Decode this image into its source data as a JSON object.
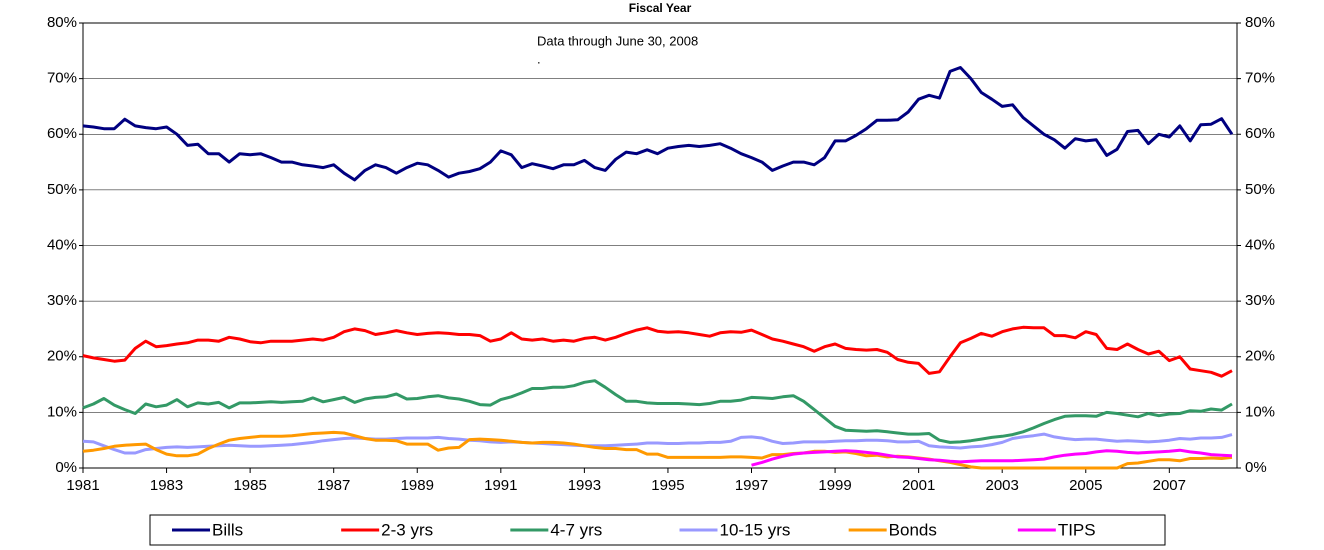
{
  "chart_data": {
    "type": "line",
    "title": "Fiscal Year",
    "annotations": [
      "Data through June 30, 2008",
      "."
    ],
    "categories": [
      "1981",
      null,
      null,
      null,
      null,
      null,
      null,
      null,
      "1983",
      null,
      null,
      null,
      null,
      null,
      null,
      null,
      "1985",
      null,
      null,
      null,
      null,
      null,
      null,
      null,
      "1987",
      null,
      null,
      null,
      null,
      null,
      null,
      null,
      "1989",
      null,
      null,
      null,
      null,
      null,
      null,
      null,
      "1991",
      null,
      null,
      null,
      null,
      null,
      null,
      null,
      "1993",
      null,
      null,
      null,
      null,
      null,
      null,
      null,
      "1995",
      null,
      null,
      null,
      null,
      null,
      null,
      null,
      "1997",
      null,
      null,
      null,
      null,
      null,
      null,
      null,
      "1999",
      null,
      null,
      null,
      null,
      null,
      null,
      null,
      "2001",
      null,
      null,
      null,
      null,
      null,
      null,
      null,
      "2003",
      null,
      null,
      null,
      null,
      null,
      null,
      null,
      "2005",
      null,
      null,
      null,
      null,
      null,
      null,
      null,
      "2007",
      null,
      null,
      null,
      null,
      null,
      null
    ],
    "series": [
      {
        "name": "Bills",
        "color": "#000080",
        "values": [
          61.5,
          61.3,
          61.0,
          61.0,
          62.7,
          61.5,
          61.2,
          61.0,
          61.3,
          60.0,
          58.0,
          58.2,
          56.5,
          56.5,
          55.0,
          56.5,
          56.3,
          56.5,
          55.8,
          55.0,
          55.0,
          54.5,
          54.3,
          54.0,
          54.5,
          53.0,
          51.8,
          53.5,
          54.5,
          54.0,
          53.0,
          54.0,
          54.8,
          54.5,
          53.5,
          52.3,
          53.0,
          53.3,
          53.8,
          55.0,
          57.0,
          56.3,
          54.0,
          54.7,
          54.3,
          53.8,
          54.5,
          54.5,
          55.3,
          54.0,
          53.5,
          55.5,
          56.8,
          56.5,
          57.2,
          56.5,
          57.5,
          57.8,
          58.0,
          57.8,
          58.0,
          58.3,
          57.5,
          56.5,
          55.8,
          55.0,
          53.5,
          54.3,
          55.0,
          55.0,
          54.5,
          55.8,
          58.8,
          58.8,
          59.8,
          61.0,
          62.5,
          62.5,
          62.6,
          64.0,
          66.3,
          67.0,
          66.5,
          71.3,
          72.0,
          70.0,
          67.5,
          66.3,
          65.0,
          65.3,
          63.0,
          61.5,
          60.0,
          59.0,
          57.5,
          59.2,
          58.8,
          59.0,
          56.2,
          57.3,
          60.5,
          60.7,
          58.3,
          60.0,
          59.5,
          61.5,
          58.8,
          61.7,
          61.8,
          62.8,
          60.0
        ]
      },
      {
        "name": "2-3 yrs",
        "color": "#ff0000",
        "values": [
          20.2,
          19.8,
          19.5,
          19.2,
          19.4,
          21.5,
          22.8,
          21.8,
          22.0,
          22.3,
          22.5,
          23.0,
          23.0,
          22.8,
          23.5,
          23.2,
          22.7,
          22.5,
          22.8,
          22.8,
          22.8,
          23.0,
          23.2,
          23.0,
          23.5,
          24.5,
          25.0,
          24.7,
          24.0,
          24.3,
          24.7,
          24.3,
          24.0,
          24.2,
          24.3,
          24.2,
          24.0,
          24.0,
          23.8,
          22.8,
          23.2,
          24.3,
          23.2,
          23.0,
          23.2,
          22.8,
          23.0,
          22.8,
          23.3,
          23.5,
          23.0,
          23.5,
          24.2,
          24.8,
          25.2,
          24.6,
          24.4,
          24.5,
          24.3,
          24.0,
          23.7,
          24.3,
          24.5,
          24.4,
          24.8,
          24.0,
          23.2,
          22.8,
          22.3,
          21.8,
          21.0,
          21.8,
          22.3,
          21.5,
          21.3,
          21.2,
          21.3,
          20.8,
          19.5,
          19.0,
          18.8,
          17.0,
          17.3,
          20.0,
          22.5,
          23.3,
          24.2,
          23.7,
          24.5,
          25.0,
          25.3,
          25.2,
          25.2,
          23.8,
          23.8,
          23.4,
          24.5,
          24.0,
          21.5,
          21.3,
          22.3,
          21.3,
          20.5,
          21.0,
          19.3,
          20.0,
          17.8,
          17.5,
          17.2,
          16.5,
          17.5
        ]
      },
      {
        "name": "4-7 yrs",
        "color": "#339966",
        "values": [
          10.8,
          11.5,
          12.5,
          11.3,
          10.5,
          9.8,
          11.5,
          11.0,
          11.3,
          12.3,
          11.0,
          11.7,
          11.5,
          11.8,
          10.8,
          11.7,
          11.7,
          11.8,
          11.9,
          11.8,
          11.9,
          12.0,
          12.6,
          11.9,
          12.3,
          12.7,
          11.8,
          12.4,
          12.7,
          12.8,
          13.3,
          12.4,
          12.5,
          12.8,
          13.0,
          12.6,
          12.4,
          12.0,
          11.4,
          11.3,
          12.3,
          12.8,
          13.5,
          14.3,
          14.3,
          14.5,
          14.5,
          14.8,
          15.4,
          15.7,
          14.5,
          13.2,
          12.0,
          12.0,
          11.7,
          11.6,
          11.6,
          11.6,
          11.5,
          11.4,
          11.6,
          12.0,
          12.0,
          12.2,
          12.7,
          12.6,
          12.5,
          12.8,
          13.0,
          12.0,
          10.5,
          9.0,
          7.5,
          6.8,
          6.7,
          6.6,
          6.7,
          6.5,
          6.3,
          6.1,
          6.1,
          6.2,
          5.0,
          4.6,
          4.7,
          4.9,
          5.2,
          5.5,
          5.7,
          6.0,
          6.5,
          7.2,
          8.0,
          8.7,
          9.3,
          9.4,
          9.4,
          9.3,
          10.0,
          9.8,
          9.5,
          9.2,
          9.8,
          9.4,
          9.7,
          9.8,
          10.3,
          10.2,
          10.6,
          10.4,
          11.5
        ]
      },
      {
        "name": "10-15 yrs",
        "color": "#9999ff",
        "values": [
          4.8,
          4.7,
          4.0,
          3.3,
          2.7,
          2.7,
          3.3,
          3.5,
          3.7,
          3.8,
          3.7,
          3.8,
          3.9,
          4.0,
          4.1,
          4.0,
          3.9,
          3.9,
          4.0,
          4.1,
          4.2,
          4.4,
          4.6,
          4.9,
          5.1,
          5.3,
          5.4,
          5.3,
          5.2,
          5.2,
          5.3,
          5.4,
          5.4,
          5.4,
          5.5,
          5.3,
          5.2,
          5.0,
          4.9,
          4.7,
          4.6,
          4.7,
          4.6,
          4.5,
          4.4,
          4.3,
          4.2,
          4.1,
          4.0,
          4.0,
          4.0,
          4.1,
          4.2,
          4.3,
          4.5,
          4.5,
          4.4,
          4.4,
          4.5,
          4.5,
          4.6,
          4.6,
          4.8,
          5.5,
          5.6,
          5.4,
          4.8,
          4.4,
          4.5,
          4.7,
          4.7,
          4.7,
          4.8,
          4.9,
          4.9,
          5.0,
          5.0,
          4.9,
          4.7,
          4.7,
          4.8,
          4.0,
          3.8,
          3.7,
          3.6,
          3.8,
          3.9,
          4.2,
          4.6,
          5.3,
          5.6,
          5.8,
          6.1,
          5.6,
          5.3,
          5.1,
          5.2,
          5.2,
          5.0,
          4.8,
          4.9,
          4.8,
          4.7,
          4.8,
          5.0,
          5.3,
          5.2,
          5.4,
          5.4,
          5.5,
          6.0
        ]
      },
      {
        "name": "Bonds",
        "color": "#ff9900",
        "values": [
          3.0,
          3.2,
          3.5,
          3.9,
          4.1,
          4.2,
          4.3,
          3.3,
          2.5,
          2.2,
          2.2,
          2.5,
          3.5,
          4.3,
          5.0,
          5.3,
          5.5,
          5.7,
          5.7,
          5.7,
          5.8,
          6.0,
          6.2,
          6.3,
          6.4,
          6.3,
          5.8,
          5.3,
          5.0,
          5.0,
          4.9,
          4.3,
          4.3,
          4.3,
          3.2,
          3.6,
          3.7,
          5.1,
          5.2,
          5.1,
          5.0,
          4.8,
          4.6,
          4.5,
          4.6,
          4.6,
          4.5,
          4.3,
          4.0,
          3.7,
          3.5,
          3.5,
          3.3,
          3.3,
          2.5,
          2.5,
          1.9,
          1.9,
          1.9,
          1.9,
          1.9,
          1.9,
          2.0,
          2.0,
          1.9,
          1.8,
          2.4,
          2.4,
          2.6,
          2.7,
          3.0,
          3.0,
          2.8,
          2.9,
          2.6,
          2.2,
          2.3,
          2.0,
          2.1,
          2.0,
          1.8,
          1.6,
          1.3,
          1.0,
          0.6,
          0.2,
          0,
          0,
          0,
          0,
          0,
          0,
          0,
          0,
          0,
          0,
          0,
          0,
          0,
          0,
          0.8,
          0.9,
          1.2,
          1.5,
          1.5,
          1.3,
          1.7,
          1.7,
          1.8,
          1.7,
          1.9
        ]
      },
      {
        "name": "TIPS",
        "color": "#ff00ff",
        "values": [
          null,
          null,
          null,
          null,
          null,
          null,
          null,
          null,
          null,
          null,
          null,
          null,
          null,
          null,
          null,
          null,
          null,
          null,
          null,
          null,
          null,
          null,
          null,
          null,
          null,
          null,
          null,
          null,
          null,
          null,
          null,
          null,
          null,
          null,
          null,
          null,
          null,
          null,
          null,
          null,
          null,
          null,
          null,
          null,
          null,
          null,
          null,
          null,
          null,
          null,
          null,
          null,
          null,
          null,
          null,
          null,
          null,
          null,
          null,
          null,
          null,
          null,
          null,
          null,
          0.5,
          1.0,
          1.6,
          2.1,
          2.5,
          2.7,
          2.8,
          2.9,
          3.0,
          3.1,
          3.0,
          2.8,
          2.6,
          2.3,
          2.0,
          1.9,
          1.7,
          1.5,
          1.4,
          1.2,
          1.1,
          1.2,
          1.3,
          1.3,
          1.3,
          1.3,
          1.4,
          1.5,
          1.6,
          2.0,
          2.3,
          2.5,
          2.6,
          2.9,
          3.1,
          3.0,
          2.8,
          2.7,
          2.8,
          2.9,
          3.0,
          3.2,
          2.9,
          2.7,
          2.4,
          2.3,
          2.2
        ]
      }
    ],
    "ylim": [
      0,
      80
    ],
    "yticks": [
      {
        "value": 0,
        "label": "0%"
      },
      {
        "value": 10,
        "label": "10%"
      },
      {
        "value": 20,
        "label": "20%"
      },
      {
        "value": 30,
        "label": "30%"
      },
      {
        "value": 40,
        "label": "40%"
      },
      {
        "value": 50,
        "label": "50%"
      },
      {
        "value": 60,
        "label": "60%"
      },
      {
        "value": 70,
        "label": "70%"
      },
      {
        "value": 80,
        "label": "80%"
      }
    ],
    "y2lim": [
      0,
      80
    ],
    "y2ticks": [
      {
        "value": 0,
        "label": "0%"
      },
      {
        "value": 10,
        "label": "10%"
      },
      {
        "value": 20,
        "label": "20%"
      },
      {
        "value": 30,
        "label": "30%"
      },
      {
        "value": 40,
        "label": "40%"
      },
      {
        "value": 50,
        "label": "50%"
      },
      {
        "value": 60,
        "label": "60%"
      },
      {
        "value": 70,
        "label": "70%"
      },
      {
        "value": 80,
        "label": "80%"
      }
    ],
    "grid": true,
    "legend": "bottom"
  }
}
